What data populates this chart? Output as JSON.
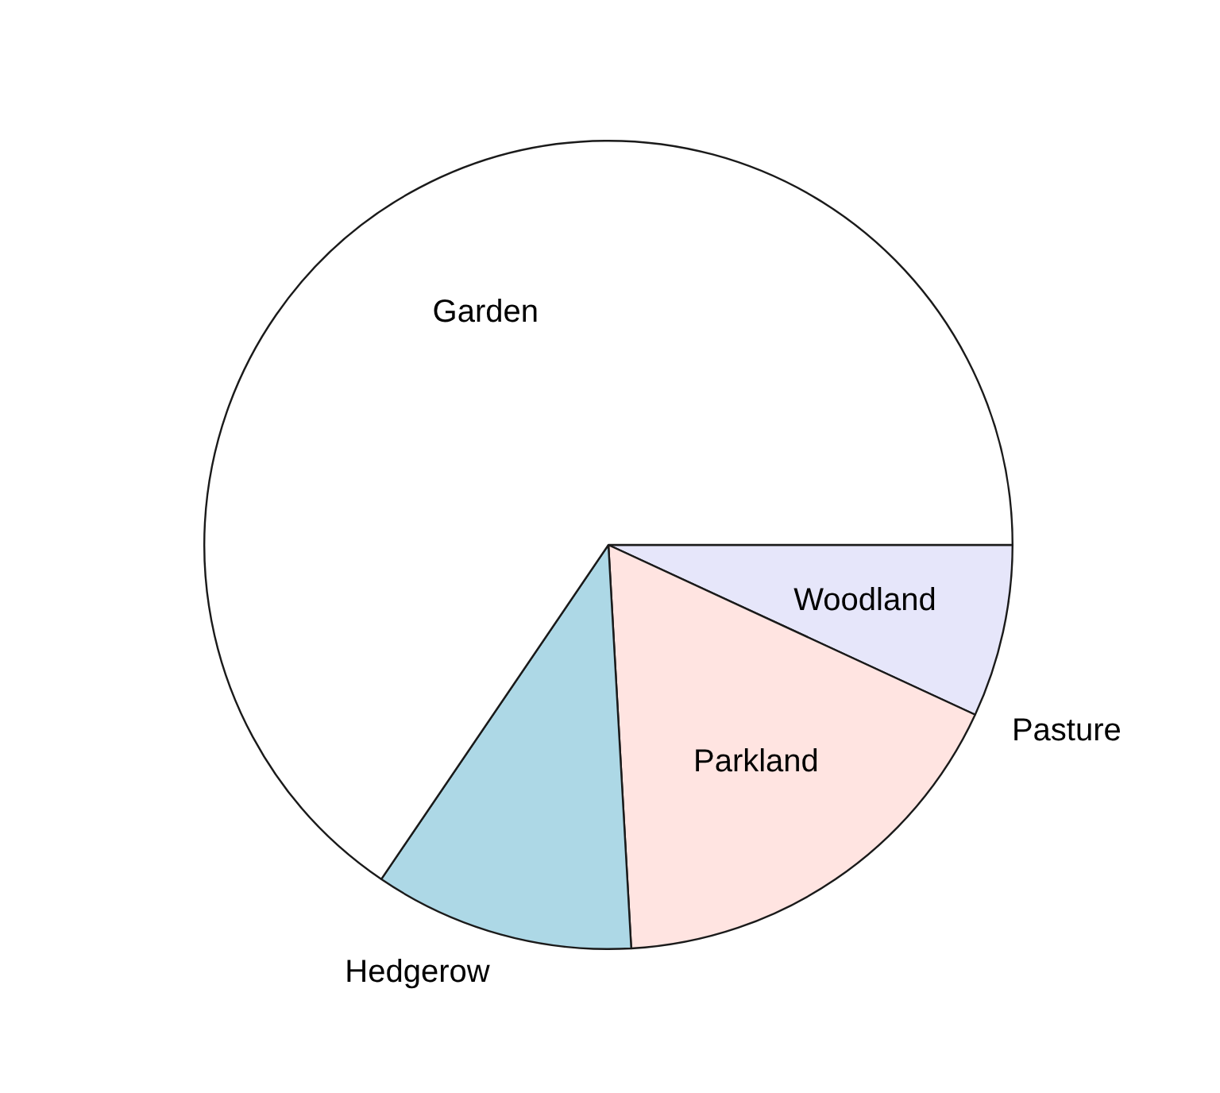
{
  "chart_data": {
    "type": "pie",
    "categories": [
      "Woodland",
      "Pasture",
      "Parkland",
      "Hedgerow",
      "Garden"
    ],
    "values": [
      6.9,
      0,
      17.2,
      10.4,
      65.5
    ],
    "colors": [
      "#e6e6fa",
      "#e0ffff",
      "#ffe4e1",
      "#add8e6",
      "#ffffff"
    ]
  }
}
